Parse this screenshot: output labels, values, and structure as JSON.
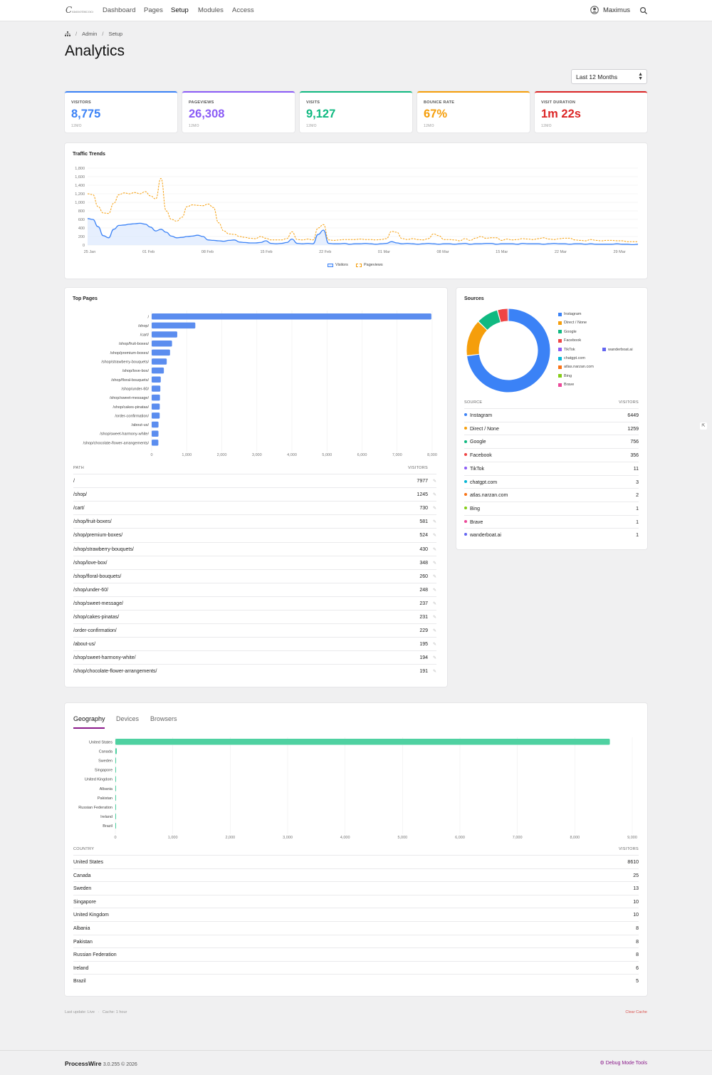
{
  "nav": {
    "items": [
      "Dashboard",
      "Pages",
      "Setup",
      "Modules",
      "Access"
    ],
    "active": "Setup",
    "user": "Maximus"
  },
  "breadcrumb": [
    "Admin",
    "Setup"
  ],
  "title": "Analytics",
  "range": "Last 12 Months",
  "stats": [
    {
      "label": "VISITORS",
      "value": "8,775",
      "sub": "12MO",
      "color": "#3b82f6"
    },
    {
      "label": "PAGEVIEWS",
      "value": "26,308",
      "sub": "12MO",
      "color": "#8b5cf6"
    },
    {
      "label": "VISITS",
      "value": "9,127",
      "sub": "12MO",
      "color": "#10b981"
    },
    {
      "label": "BOUNCE RATE",
      "value": "67%",
      "sub": "12MO",
      "color": "#f59e0b"
    },
    {
      "label": "VISIT DURATION",
      "value": "1m 22s",
      "sub": "12MO",
      "color": "#dc2626"
    }
  ],
  "traffic": {
    "title": "Traffic Trends",
    "legend": [
      "Visitors",
      "Pageviews"
    ]
  },
  "top_pages": {
    "title": "Top Pages",
    "col_path": "PATH",
    "col_visitors": "VISITORS"
  },
  "sources": {
    "title": "Sources",
    "col_source": "SOURCE",
    "col_visitors": "VISITORS"
  },
  "geo": {
    "tabs": [
      "Geography",
      "Devices",
      "Browsers"
    ],
    "active": "Geography",
    "col_country": "COUNTRY",
    "col_visitors": "VISITORS"
  },
  "footer_meta": {
    "last_update": "Last update: Live",
    "cache": "Cache: 1 hour",
    "clear": "Clear Cache"
  },
  "footer": {
    "brand": "ProcessWire",
    "version": "3.0.255 © 2026",
    "debug": "Debug Mode Tools"
  },
  "chart_data": [
    {
      "type": "line",
      "title": "Traffic Trends",
      "x_ticks": [
        "25 Jan",
        "01 Feb",
        "08 Feb",
        "15 Feb",
        "22 Feb",
        "01 Mar",
        "08 Mar",
        "15 Mar",
        "22 Mar",
        "29 Mar"
      ],
      "ylim": [
        0,
        1800
      ],
      "y_ticks": [
        "0",
        "200",
        "400",
        "600",
        "800",
        "1,000",
        "1,200",
        "1,400",
        "1,600",
        "1,800"
      ],
      "series": [
        {
          "name": "Visitors",
          "color": "#3b82f6",
          "style": "solid-filled",
          "values": [
            620,
            600,
            430,
            220,
            170,
            370,
            460,
            470,
            490,
            500,
            510,
            490,
            420,
            330,
            370,
            300,
            210,
            170,
            180,
            200,
            210,
            230,
            200,
            120,
            110,
            100,
            90,
            110,
            120,
            70,
            60,
            50,
            50,
            60,
            100,
            40,
            30,
            40,
            60,
            140,
            40,
            30,
            40,
            30,
            250,
            350,
            40,
            30,
            30,
            40,
            20,
            30,
            30,
            40,
            30,
            20,
            30,
            40,
            80,
            50,
            30,
            40,
            30,
            20,
            30,
            40,
            30,
            20,
            30,
            30,
            20,
            30,
            40,
            20,
            30,
            30,
            40,
            40,
            20,
            30,
            30,
            30,
            20,
            40,
            30,
            30,
            30,
            20,
            30,
            40,
            30,
            30,
            20,
            30,
            30,
            20,
            30,
            20,
            20,
            20,
            20,
            30,
            20,
            20,
            10,
            20
          ]
        },
        {
          "name": "Pageviews",
          "color": "#f59e0b",
          "style": "dashed",
          "values": [
            1200,
            1180,
            900,
            750,
            740,
            980,
            1180,
            1220,
            1200,
            1230,
            1200,
            1250,
            1150,
            1080,
            1560,
            800,
            600,
            560,
            650,
            900,
            940,
            930,
            920,
            960,
            880,
            520,
            330,
            260,
            250,
            200,
            180,
            160,
            150,
            200,
            160,
            120,
            120,
            120,
            150,
            310,
            130,
            120,
            140,
            120,
            400,
            480,
            120,
            110,
            120,
            130,
            130,
            130,
            140,
            130,
            130,
            120,
            130,
            150,
            320,
            300,
            150,
            130,
            150,
            130,
            120,
            150,
            260,
            220,
            130,
            130,
            120,
            100,
            150,
            110,
            160,
            200,
            160,
            170,
            170,
            110,
            140,
            120,
            130,
            150,
            140,
            130,
            150,
            170,
            140,
            130,
            150,
            160,
            160,
            120,
            110,
            100,
            130,
            110,
            100,
            110,
            110,
            100,
            100,
            80,
            80,
            80
          ]
        }
      ]
    },
    {
      "type": "bar",
      "title": "Top Pages",
      "orientation": "horizontal",
      "categories": [
        "/",
        "/shop/",
        "/cart/",
        "/shop/fruit-boxes/",
        "/shop/premium-boxes/",
        "/shop/strawberry-bouquets/",
        "/shop/love-box/",
        "/shop/floral-bouquets/",
        "/shop/under-60/",
        "/shop/sweet-message/",
        "/shop/cakes-pinatas/",
        "/order-confirmation/",
        "/about-us/",
        "/shop/sweet-harmony-white/",
        "/shop/chocolate-flower-arrangements/"
      ],
      "values": [
        7977,
        1245,
        730,
        581,
        524,
        430,
        348,
        260,
        248,
        237,
        231,
        229,
        195,
        194,
        191
      ],
      "xlim": [
        0,
        8000
      ],
      "x_ticks": [
        "0",
        "1,000",
        "2,000",
        "3,000",
        "4,000",
        "5,000",
        "6,000",
        "7,000",
        "8,000"
      ],
      "color": "#5b8def"
    },
    {
      "type": "pie",
      "title": "Sources",
      "categories": [
        "Instagram",
        "Direct / None",
        "Google",
        "Facebook",
        "TikTok",
        "chatgpt.com",
        "atlas.narzan.com",
        "Bing",
        "Brave",
        "wanderboat.ai"
      ],
      "values": [
        6449,
        1259,
        756,
        356,
        11,
        3,
        2,
        1,
        1,
        1
      ],
      "colors": [
        "#3b82f6",
        "#f59e0b",
        "#10b981",
        "#ef4444",
        "#8b5cf6",
        "#06b6d4",
        "#f97316",
        "#84cc16",
        "#ec4899",
        "#6366f1"
      ]
    },
    {
      "type": "bar",
      "orientation": "horizontal",
      "categories": [
        "United States",
        "Canada",
        "Sweden",
        "Singapore",
        "United Kingdom",
        "Albania",
        "Pakistan",
        "Russian Federation",
        "Ireland",
        "Brazil"
      ],
      "values": [
        8610,
        25,
        13,
        10,
        10,
        8,
        8,
        8,
        6,
        5
      ],
      "xlim": [
        0,
        9000
      ],
      "x_ticks": [
        "0",
        "1,000",
        "2,000",
        "3,000",
        "4,000",
        "5,000",
        "6,000",
        "7,000",
        "8,000",
        "9,000"
      ],
      "color": "#4fd1a1"
    }
  ]
}
